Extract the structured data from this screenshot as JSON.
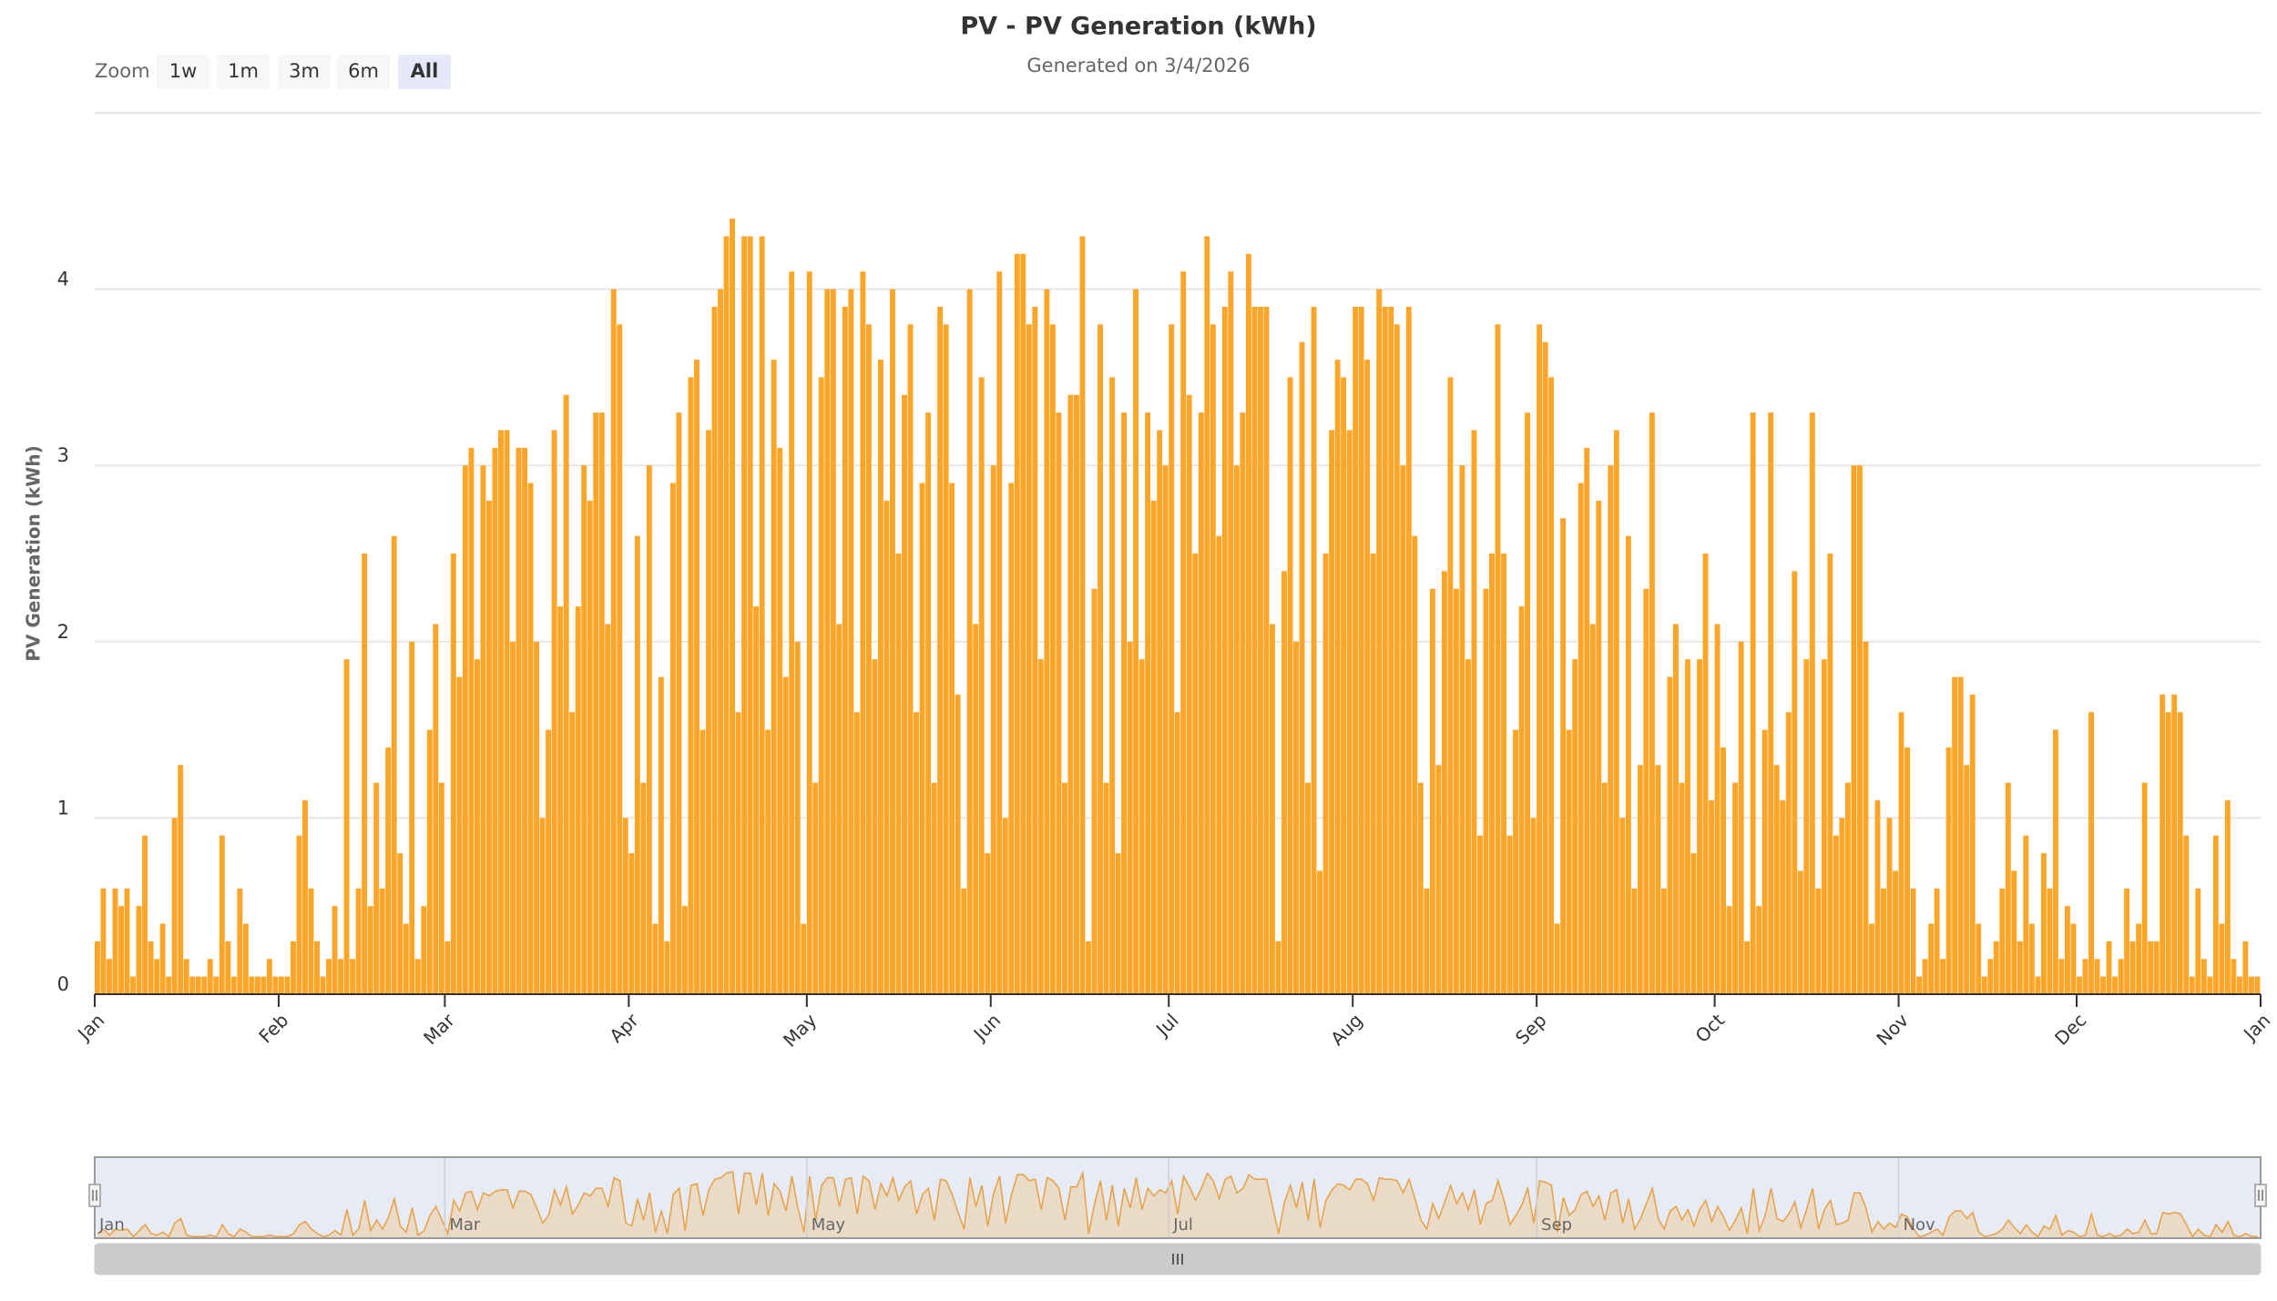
{
  "chart_data": {
    "type": "bar",
    "title": "PV - PV Generation (kWh)",
    "subtitle": "Generated on 3/4/2026",
    "y_label": "PV Generation (kWh)",
    "color": "#fba628",
    "grid": true,
    "ylim": [
      0,
      5
    ],
    "yticks": [
      0,
      1,
      2,
      3,
      4
    ],
    "xlim": [
      0,
      365
    ],
    "xticks": [
      {
        "value": 0,
        "label": "Jan"
      },
      {
        "value": 31,
        "label": "Feb"
      },
      {
        "value": 59,
        "label": "Mar"
      },
      {
        "value": 90,
        "label": "Apr"
      },
      {
        "value": 120,
        "label": "May"
      },
      {
        "value": 151,
        "label": "Jun"
      },
      {
        "value": 181,
        "label": "Jul"
      },
      {
        "value": 212,
        "label": "Aug"
      },
      {
        "value": 243,
        "label": "Sep"
      },
      {
        "value": 273,
        "label": "Oct"
      },
      {
        "value": 304,
        "label": "Nov"
      },
      {
        "value": 334,
        "label": "Dec"
      },
      {
        "value": 365,
        "label": "Jan"
      }
    ],
    "values": [
      0.3,
      0.6,
      0.2,
      0.6,
      0.5,
      0.6,
      0.1,
      0.5,
      0.9,
      0.3,
      0.2,
      0.4,
      0.1,
      1.0,
      1.3,
      0.2,
      0.1,
      0.1,
      0.1,
      0.2,
      0.1,
      0.9,
      0.3,
      0.1,
      0.6,
      0.4,
      0.1,
      0.1,
      0.1,
      0.2,
      0.1,
      0.1,
      0.1,
      0.3,
      0.9,
      1.1,
      0.6,
      0.3,
      0.1,
      0.2,
      0.5,
      0.2,
      1.9,
      0.2,
      0.6,
      2.5,
      0.5,
      1.2,
      0.6,
      1.4,
      2.6,
      0.8,
      0.4,
      2.0,
      0.2,
      0.5,
      1.5,
      2.1,
      1.2,
      0.3,
      2.5,
      1.8,
      3.0,
      3.1,
      1.9,
      3.0,
      2.8,
      3.1,
      3.2,
      3.2,
      2.0,
      3.1,
      3.1,
      2.9,
      2.0,
      1.0,
      1.5,
      3.2,
      2.2,
      3.4,
      1.6,
      2.2,
      3.0,
      2.8,
      3.3,
      3.3,
      2.1,
      4.0,
      3.8,
      1.0,
      0.8,
      2.6,
      1.2,
      3.0,
      0.4,
      1.8,
      0.3,
      2.9,
      3.3,
      0.5,
      3.5,
      3.6,
      1.5,
      3.2,
      3.9,
      4.0,
      4.3,
      4.4,
      1.6,
      4.3,
      4.3,
      2.2,
      4.3,
      1.5,
      3.6,
      3.1,
      1.8,
      4.1,
      2.0,
      0.4,
      4.1,
      1.2,
      3.5,
      4.0,
      4.0,
      2.1,
      3.9,
      4.0,
      1.6,
      4.1,
      3.8,
      1.9,
      3.6,
      2.8,
      4.0,
      2.5,
      3.4,
      3.8,
      1.6,
      2.9,
      3.3,
      1.2,
      3.9,
      3.8,
      2.9,
      1.7,
      0.6,
      4.0,
      2.1,
      3.5,
      0.8,
      3.0,
      4.1,
      1.0,
      2.9,
      4.2,
      4.2,
      3.8,
      3.9,
      1.9,
      4.0,
      3.8,
      3.3,
      1.2,
      3.4,
      3.4,
      4.3,
      0.3,
      2.3,
      3.8,
      1.2,
      3.5,
      0.8,
      3.3,
      2.0,
      4.0,
      1.9,
      3.3,
      2.8,
      3.2,
      3.0,
      3.8,
      1.6,
      4.1,
      3.4,
      2.5,
      3.3,
      4.3,
      3.8,
      2.6,
      3.9,
      4.1,
      3.0,
      3.3,
      4.2,
      3.9,
      3.9,
      3.9,
      2.1,
      0.3,
      2.4,
      3.5,
      2.0,
      3.7,
      1.2,
      3.9,
      0.7,
      2.5,
      3.2,
      3.6,
      3.5,
      3.2,
      3.9,
      3.9,
      3.6,
      2.5,
      4.0,
      3.9,
      3.9,
      3.8,
      3.0,
      3.9,
      2.6,
      1.2,
      0.6,
      2.3,
      1.3,
      2.4,
      3.5,
      2.3,
      3.0,
      1.9,
      3.2,
      0.9,
      2.3,
      2.5,
      3.8,
      2.5,
      0.9,
      1.5,
      2.2,
      3.3,
      1.0,
      3.8,
      3.7,
      3.5,
      0.4,
      2.7,
      1.5,
      1.9,
      2.9,
      3.1,
      2.1,
      2.8,
      1.2,
      3.0,
      3.2,
      1.0,
      2.6,
      0.6,
      1.3,
      2.3,
      3.3,
      1.3,
      0.6,
      1.8,
      2.1,
      1.2,
      1.9,
      0.8,
      1.9,
      2.5,
      1.1,
      2.1,
      1.4,
      0.5,
      1.2,
      2.0,
      0.3,
      3.3,
      0.5,
      1.5,
      3.3,
      1.3,
      1.1,
      1.6,
      2.4,
      0.7,
      1.9,
      3.3,
      0.6,
      1.9,
      2.5,
      0.9,
      1.0,
      1.2,
      3.0,
      3.0,
      2.0,
      0.4,
      1.1,
      0.6,
      1.0,
      0.7,
      1.6,
      1.4,
      0.6,
      0.1,
      0.2,
      0.4,
      0.6,
      0.2,
      1.4,
      1.8,
      1.8,
      1.3,
      1.7,
      0.4,
      0.1,
      0.2,
      0.3,
      0.6,
      1.2,
      0.7,
      0.3,
      0.9,
      0.4,
      0.1,
      0.8,
      0.6,
      1.5,
      0.2,
      0.5,
      0.4,
      0.1,
      0.2,
      1.6,
      0.2,
      0.1,
      0.3,
      0.1,
      0.2,
      0.6,
      0.3,
      0.4,
      1.2,
      0.3,
      0.3,
      1.7,
      1.6,
      1.7,
      1.6,
      0.9,
      0.1,
      0.6,
      0.2,
      0.1,
      0.9,
      0.4,
      1.1,
      0.2,
      0.1,
      0.3,
      0.1,
      0.1
    ],
    "zoom": {
      "label": "Zoom",
      "buttons": [
        "1w",
        "1m",
        "3m",
        "6m",
        "All"
      ],
      "selected": 4
    },
    "navigator": {
      "xticks": [
        {
          "value": 0,
          "label": "Jan"
        },
        {
          "value": 59,
          "label": "Mar"
        },
        {
          "value": 120,
          "label": "May"
        },
        {
          "value": 181,
          "label": "Jul"
        },
        {
          "value": 243,
          "label": "Sep"
        },
        {
          "value": 304,
          "label": "Nov"
        }
      ]
    }
  }
}
